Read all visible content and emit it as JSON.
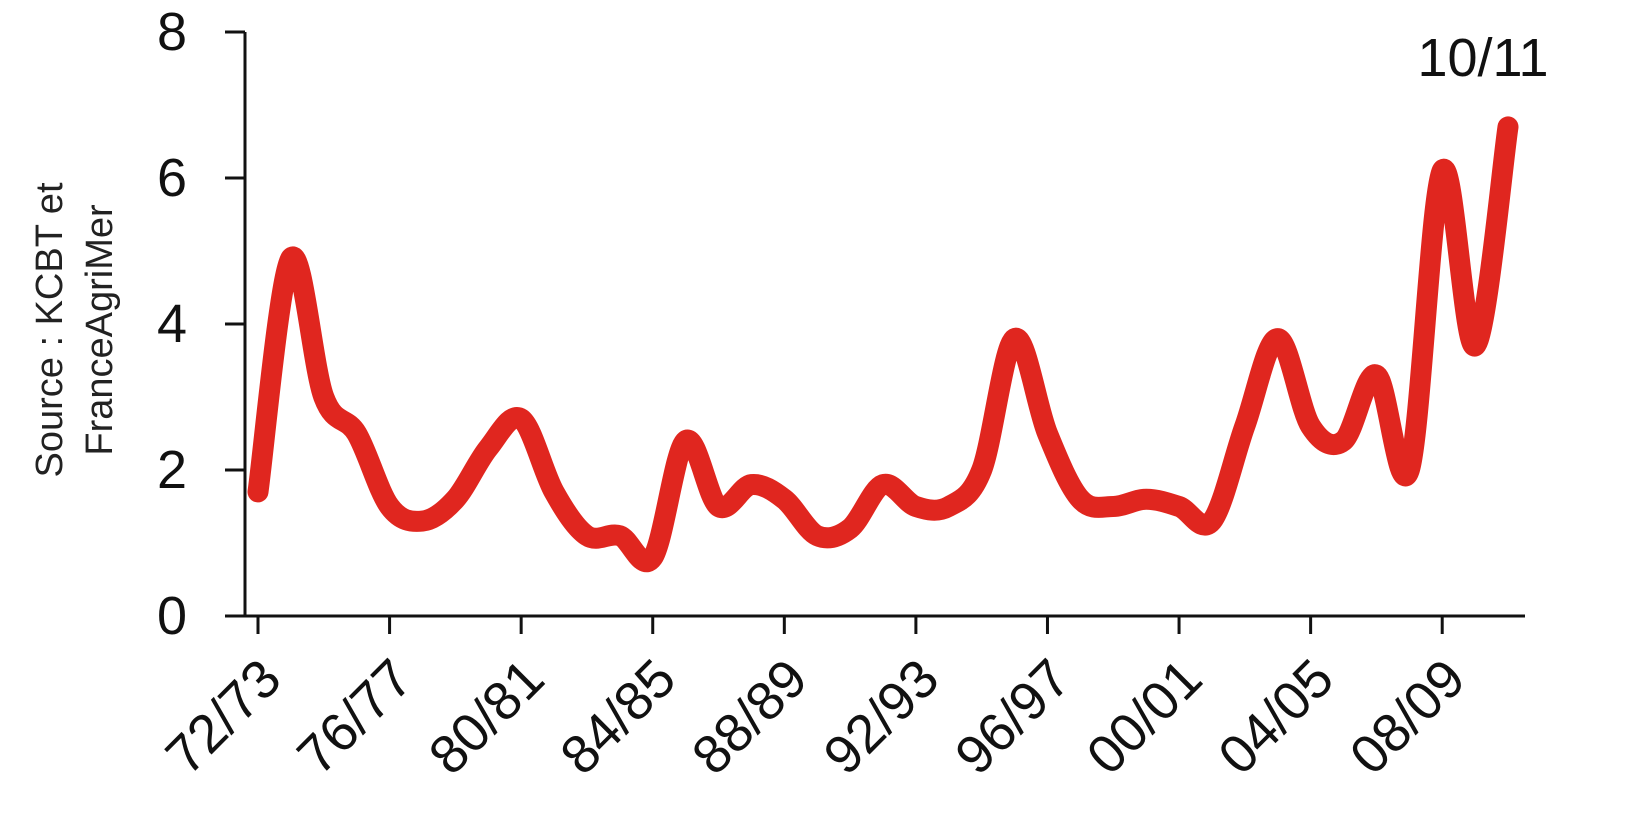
{
  "chart_data": {
    "type": "line",
    "title": "",
    "ylabel_lines": [
      "Source : KCBT et",
      "FranceAgriMer"
    ],
    "xlabel": "",
    "ylim": [
      0,
      8
    ],
    "yticks": [
      0,
      2,
      4,
      6,
      8
    ],
    "x_tick_labels": [
      "72/73",
      "76/77",
      "80/81",
      "84/85",
      "88/89",
      "92/93",
      "96/97",
      "00/01",
      "04/05",
      "08/09"
    ],
    "end_label": "10/11",
    "line_color": "#e0261f",
    "x": [
      "72/73",
      "73/74",
      "74/75",
      "75/76",
      "76/77",
      "77/78",
      "78/79",
      "79/80",
      "80/81",
      "81/82",
      "82/83",
      "83/84",
      "84/85",
      "85/86",
      "86/87",
      "87/88",
      "88/89",
      "89/90",
      "90/91",
      "91/92",
      "92/93",
      "93/94",
      "94/95",
      "95/96",
      "96/97",
      "97/98",
      "98/99",
      "99/00",
      "00/01",
      "01/02",
      "02/03",
      "03/04",
      "04/05",
      "05/06",
      "06/07",
      "07/08",
      "08/09",
      "09/10",
      "10/11"
    ],
    "values": [
      1.7,
      4.9,
      3.0,
      2.5,
      1.5,
      1.3,
      1.6,
      2.3,
      2.7,
      1.7,
      1.1,
      1.1,
      0.8,
      2.4,
      1.5,
      1.8,
      1.6,
      1.1,
      1.2,
      1.8,
      1.5,
      1.5,
      2.0,
      3.8,
      2.5,
      1.6,
      1.5,
      1.6,
      1.5,
      1.3,
      2.6,
      3.8,
      2.6,
      2.4,
      3.3,
      2.0,
      6.1,
      3.7,
      6.7
    ]
  }
}
